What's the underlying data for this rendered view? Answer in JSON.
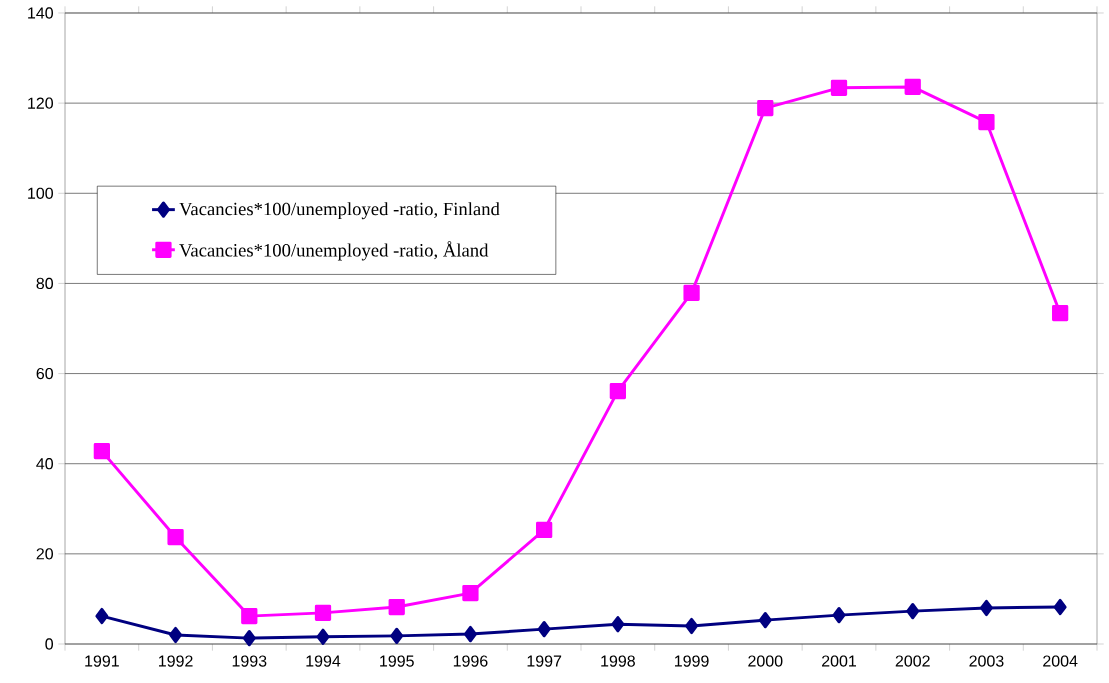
{
  "chart_data": {
    "type": "line",
    "categories": [
      "1991",
      "1992",
      "1993",
      "1994",
      "1995",
      "1996",
      "1997",
      "1998",
      "1999",
      "2000",
      "2001",
      "2002",
      "2003",
      "2004"
    ],
    "series": [
      {
        "name": "Vacancies*100/unemployed -ratio, Finland",
        "color": "#000080",
        "marker": "diamond",
        "values": [
          6.2,
          2.0,
          1.3,
          1.6,
          1.8,
          2.2,
          3.3,
          4.4,
          4.0,
          5.3,
          6.4,
          7.3,
          8.0,
          8.2
        ]
      },
      {
        "name": "Vacancies*100/unemployed -ratio, Åland",
        "color": "#ff00ff",
        "marker": "square",
        "values": [
          42.8,
          23.7,
          6.2,
          6.9,
          8.2,
          11.3,
          25.3,
          56.1,
          77.9,
          118.9,
          123.4,
          123.6,
          115.8,
          73.4
        ]
      }
    ],
    "ylim": [
      0,
      140
    ],
    "yticks": [
      0,
      20,
      40,
      60,
      80,
      100,
      120,
      140
    ],
    "grid": "y",
    "legend": "left",
    "line_style": "solid"
  }
}
